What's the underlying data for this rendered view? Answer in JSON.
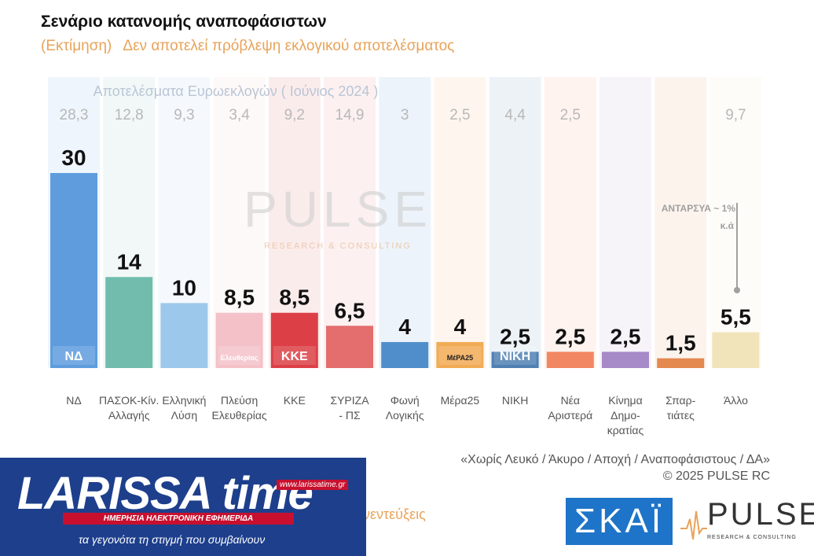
{
  "title": "Σενάριο κατανομής αναποφάσιστων",
  "subtitle_left": "(Εκτίμηση)",
  "subtitle_right": "Δεν αποτελεί πρόβλεψη εκλογικού αποτελέσματος",
  "chart_data": {
    "type": "bar",
    "categories": [
      "ΝΔ",
      "ΠΑΣΟΚ-Κίν. Αλλαγής",
      "Ελληνική Λύση",
      "Πλεύση Ελευθερίας",
      "ΚΚΕ",
      "ΣΥΡΙΖΑ - ΠΣ",
      "Φωνή Λογικής",
      "Μέρα25",
      "ΝΙΚΗ",
      "Νέα Αριστερά",
      "Κίνημα Δημο- κρατίας",
      "Σπαρ- τιάτες",
      "Άλλο"
    ],
    "category_lines": [
      [
        "ΝΔ"
      ],
      [
        "ΠΑΣΟΚ-Κίν.",
        "Αλλαγής"
      ],
      [
        "Ελληνική",
        "Λύση"
      ],
      [
        "Πλεύση",
        "Ελευθερίας"
      ],
      [
        "ΚΚΕ"
      ],
      [
        "ΣΥΡΙΖΑ",
        "- ΠΣ"
      ],
      [
        "Φωνή",
        "Λογικής"
      ],
      [
        "Μέρα25"
      ],
      [
        "ΝΙΚΗ"
      ],
      [
        "Νέα",
        "Αριστερά"
      ],
      [
        "Κίνημα",
        "Δημο-",
        "κρατίας"
      ],
      [
        "Σπαρ-",
        "τιάτες"
      ],
      [
        "Άλλο"
      ]
    ],
    "values": [
      30,
      14,
      10,
      8.5,
      8.5,
      6.5,
      4,
      4,
      2.5,
      2.5,
      2.5,
      1.5,
      5.5
    ],
    "value_labels": [
      "30",
      "14",
      "10",
      "8,5",
      "8,5",
      "6,5",
      "4",
      "4",
      "2,5",
      "2,5",
      "2,5",
      "1,5",
      "5,5"
    ],
    "euro_elections_title": "Αποτελέσματα Ευρωεκλογών  ( Ιούνιος 2024 )",
    "euro_elections_labels": [
      "28,3",
      "12,8",
      "9,3",
      "3,4",
      "9,2",
      "14,9",
      "3",
      "2,5",
      "4,4",
      "2,5",
      "",
      "",
      "9,7"
    ],
    "colors": [
      "#4a90d9",
      "#5fb3a3",
      "#90c2e8",
      "#f2b8c0",
      "#d7282f",
      "#e05a5a",
      "#3a7fc4",
      "#f0a040",
      "#3a6fa8",
      "#f07850",
      "#9b7bc0",
      "#e07a3a",
      "#efe0b0"
    ],
    "logos": [
      "ΝΔ",
      "",
      "",
      "Ελευθερίας",
      "ΚΚΕ",
      "",
      "",
      "ΜέΡΑ25",
      "ΝΙΚΗ",
      "",
      "",
      "",
      ""
    ],
    "annotation": "ΑΝΤΑΡΣΥΑ ~ 1% κ.ά",
    "watermark": "PULSE",
    "watermark_sub": "RESEARCH & CONSULTING",
    "ylim": [
      0,
      30
    ]
  },
  "footnote": {
    "line1": "«Χωρίς Λευκό / Άκυρο / Αποχή / Αναποφάσιστους / ΔΑ»",
    "line2": "©  2025  PULSE RC"
  },
  "larissa": {
    "name": "LARISSA time",
    "url": "www.larissatime.gr",
    "band": "ΗΜΕΡΗΣΙΑ ΗΛΕΚΤΡΟΝΙΚΗ ΕΦΗΜΕΡΙΔΑ",
    "tagline": "τα γεγονότα τη στιγμή που συμβαίνουν"
  },
  "interviews_text": "νεντεύξεις",
  "skai_logo": "ΣΚΑΪ",
  "pulse_logo": {
    "word": "PULSE",
    "sub": "RESEARCH & CONSULTING"
  }
}
